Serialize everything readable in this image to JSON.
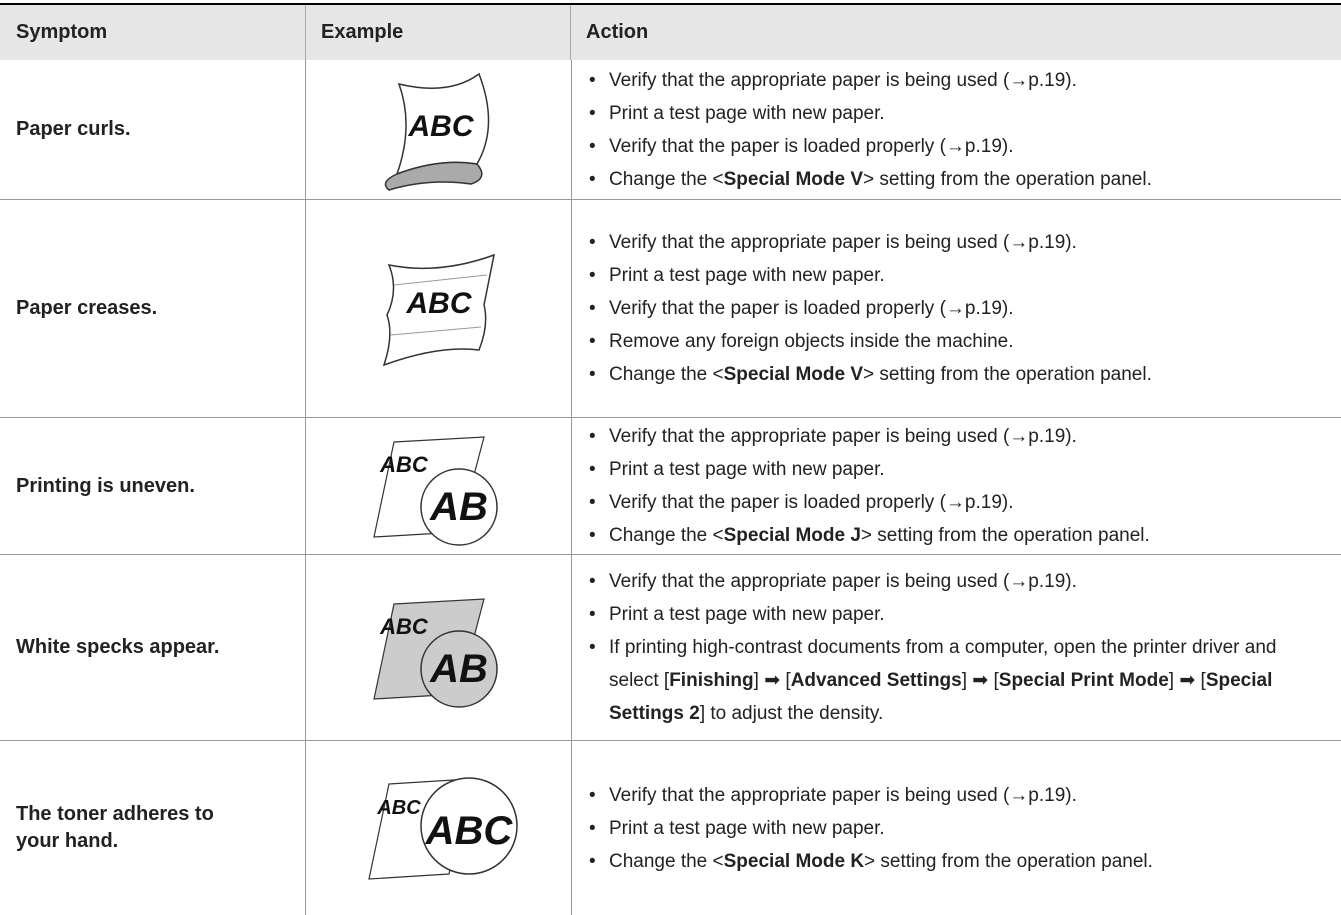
{
  "table": {
    "header": [
      "Symptom",
      "Example",
      "Action"
    ],
    "rows": [
      {
        "symptom": "Paper curls.",
        "example": [
          "ABC"
        ],
        "actions": [
          [
            {
              "text": "Verify that the appropriate paper is being used (→p.19).",
              "bold": false
            }
          ],
          [
            {
              "text": "Print a test page with new paper.",
              "bold": false
            }
          ],
          [
            {
              "text": "Verify that the paper is loaded properly (→p.19).",
              "bold": false
            }
          ],
          [
            {
              "text": "Change the <",
              "bold": false
            },
            {
              "text": "Special Mode V",
              "bold": true
            },
            {
              "text": "> setting from the operation panel.",
              "bold": false
            }
          ]
        ]
      },
      {
        "symptom": "Paper creases.",
        "example": [
          "ABC"
        ],
        "actions": [
          [
            {
              "text": "Verify that the appropriate paper is being used (→p.19).",
              "bold": false
            }
          ],
          [
            {
              "text": "Print a test page with new paper.",
              "bold": false
            }
          ],
          [
            {
              "text": "Verify that the paper is loaded properly (→p.19).",
              "bold": false
            }
          ],
          [
            {
              "text": "Remove any foreign objects inside the machine.",
              "bold": false
            }
          ],
          [
            {
              "text": "Change the <",
              "bold": false
            },
            {
              "text": "Special Mode V",
              "bold": true
            },
            {
              "text": "> setting from the operation panel.",
              "bold": false
            }
          ]
        ]
      },
      {
        "symptom": "Printing is uneven.",
        "example": [
          "ABC",
          "AB"
        ],
        "actions": [
          [
            {
              "text": "Verify that the appropriate paper is being used (→p.19).",
              "bold": false
            }
          ],
          [
            {
              "text": "Print a test page with new paper.",
              "bold": false
            }
          ],
          [
            {
              "text": "Verify that the paper is loaded properly (→p.19).",
              "bold": false
            }
          ],
          [
            {
              "text": "Change the <",
              "bold": false
            },
            {
              "text": "Special Mode J",
              "bold": true
            },
            {
              "text": "> setting from the operation panel.",
              "bold": false
            }
          ]
        ]
      },
      {
        "symptom": "White specks appear.",
        "example": [
          "ABC",
          "AB"
        ],
        "actions": [
          [
            {
              "text": "Verify that the appropriate paper is being used (→p.19).",
              "bold": false
            }
          ],
          [
            {
              "text": "Print a test page with new paper.",
              "bold": false
            }
          ],
          [
            {
              "text": "If printing high-contrast documents from a computer, open the printer driver and select [",
              "bold": false
            },
            {
              "text": "Finishing",
              "bold": true
            },
            {
              "text": "] ➡ [",
              "bold": false
            },
            {
              "text": "Advanced Settings",
              "bold": true
            },
            {
              "text": "] ➡ [",
              "bold": false
            },
            {
              "text": "Special Print Mode",
              "bold": true
            },
            {
              "text": "] ➡ [",
              "bold": false
            },
            {
              "text": "Special Settings 2",
              "bold": true
            },
            {
              "text": "] to adjust the density.",
              "bold": false
            }
          ]
        ]
      },
      {
        "symptom": "The toner adheres to your hand.",
        "example": [
          "ABC",
          "ABC"
        ],
        "actions": [
          [
            {
              "text": "Verify that the appropriate paper is being used (→p.19).",
              "bold": false
            }
          ],
          [
            {
              "text": "Print a test page with new paper.",
              "bold": false
            }
          ],
          [
            {
              "text": "Change the <",
              "bold": false
            },
            {
              "text": "Special Mode K",
              "bold": true
            },
            {
              "text": "> setting from the operation panel.",
              "bold": false
            }
          ]
        ]
      }
    ]
  }
}
